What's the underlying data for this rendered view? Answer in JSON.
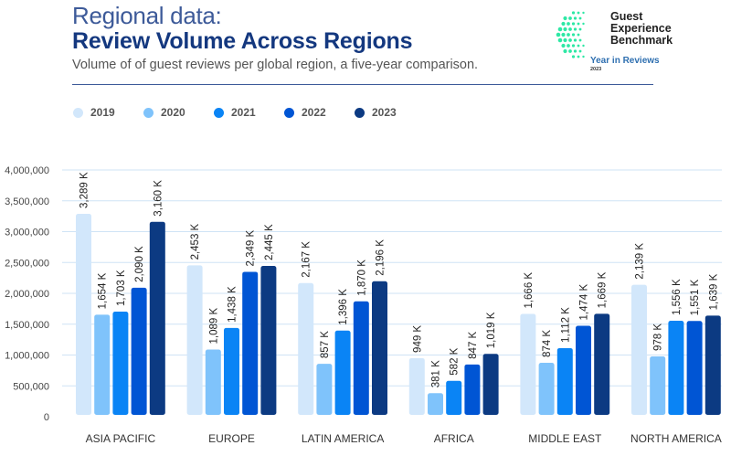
{
  "header": {
    "kicker": "Regional data:",
    "title": "Review Volume Across Regions",
    "subtitle": "Volume of of guest reviews per global region, a five-year comparison."
  },
  "logo": {
    "line1": "Guest",
    "line2": "Experience",
    "line3": "Benchmark",
    "tagline": "Year in Reviews",
    "year": "2023",
    "icon": "dotted-globe-icon",
    "accent": "#2ee8a5"
  },
  "legend": [
    {
      "label": "2019",
      "color": "#d2e7fb"
    },
    {
      "label": "2020",
      "color": "#7fc3fb"
    },
    {
      "label": "2021",
      "color": "#0a84f5"
    },
    {
      "label": "2022",
      "color": "#0055d4"
    },
    {
      "label": "2023",
      "color": "#0c3a82"
    }
  ],
  "chart_data": {
    "type": "bar",
    "title": "Review Volume Across Regions",
    "xlabel": "",
    "ylabel": "",
    "ylim": [
      0,
      4000000
    ],
    "yticks": [
      0,
      500000,
      1000000,
      1500000,
      2000000,
      2500000,
      3000000,
      3500000,
      4000000
    ],
    "ytick_labels": [
      "0",
      "500,000",
      "1,000,000",
      "1,500,000",
      "2,000,000",
      "2,500,000",
      "3,000,000",
      "3,500,000",
      "4,000,000"
    ],
    "grid": true,
    "legend_position": "top-left",
    "categories": [
      "ASIA PACIFIC",
      "EUROPE",
      "LATIN AMERICA",
      "AFRICA",
      "MIDDLE EAST",
      "NORTH AMERICA"
    ],
    "series": [
      {
        "name": "2019",
        "color": "#d2e7fb",
        "values": [
          3289000,
          2453000,
          2167000,
          949000,
          1666000,
          2139000
        ],
        "labels": [
          "3,289 K",
          "2,453 K",
          "2,167 K",
          "949 K",
          "1,666 K",
          "2,139 K"
        ]
      },
      {
        "name": "2020",
        "color": "#7fc3fb",
        "values": [
          1654000,
          1089000,
          857000,
          381000,
          874000,
          978000
        ],
        "labels": [
          "1,654 K",
          "1,089 K",
          "857 K",
          "381 K",
          "874 K",
          "978 K"
        ]
      },
      {
        "name": "2021",
        "color": "#0a84f5",
        "values": [
          1703000,
          1438000,
          1396000,
          582000,
          1112000,
          1556000
        ],
        "labels": [
          "1,703 K",
          "1,438 K",
          "1,396 K",
          "582 K",
          "1,112 K",
          "1,556 K"
        ]
      },
      {
        "name": "2022",
        "color": "#0055d4",
        "values": [
          2090000,
          2349000,
          1870000,
          847000,
          1474000,
          1551000
        ],
        "labels": [
          "2,090 K",
          "2,349 K",
          "1,870 K",
          "847 K",
          "1,474 K",
          "1,551 K"
        ]
      },
      {
        "name": "2023",
        "color": "#0c3a82",
        "values": [
          3160000,
          2445000,
          2196000,
          1019000,
          1669000,
          1639000
        ],
        "labels": [
          "3,160 K",
          "2,445 K",
          "2,196 K",
          "1,019 K",
          "1,669 K",
          "1,639 K"
        ]
      }
    ]
  }
}
